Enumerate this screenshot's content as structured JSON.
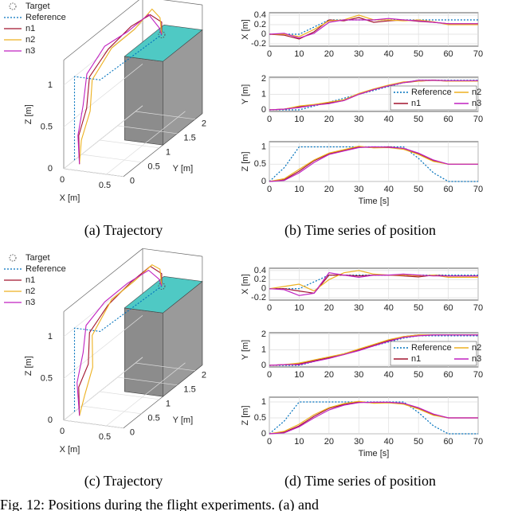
{
  "chart_data": [
    {
      "type": "line3d",
      "xlabel": "X [m]",
      "ylabel": "Y [m]",
      "zlabel": "Z [m]",
      "xlim": [
        0,
        0.7
      ],
      "ylim": [
        0,
        2.2
      ],
      "zlim": [
        0,
        1.3
      ],
      "xticks": [
        0,
        0.5
      ],
      "yticks": [
        0,
        0.5,
        1,
        1.5,
        2
      ],
      "zticks": [
        0,
        0.5,
        1
      ],
      "legend": "upper left",
      "series": [
        {
          "name": "Target",
          "color": "#555555",
          "marker": "circle",
          "x": [
            0.35
          ],
          "y": [
            1.9
          ],
          "z": [
            1
          ]
        },
        {
          "name": "Reference",
          "color": "#0072BD",
          "style": "dotted",
          "x": [
            0,
            0,
            0.3,
            0.35
          ],
          "y": [
            0.3,
            0.3,
            0.3,
            1.9
          ],
          "z": [
            0,
            1,
            1,
            1
          ]
        },
        {
          "name": "n1",
          "color": "#A2142F",
          "x": [
            0.1,
            0.05,
            0.1,
            0.05,
            0.1,
            0.2,
            0.3,
            0.35,
            0.35
          ],
          "y": [
            0.2,
            0.3,
            0.4,
            0.6,
            1.0,
            1.4,
            1.7,
            1.9,
            1.9
          ],
          "z": [
            0,
            0.3,
            0.6,
            0.9,
            1.1,
            1.25,
            1.3,
            1.15,
            1.0
          ]
        },
        {
          "name": "n2",
          "color": "#EDB120",
          "x": [
            0.1,
            0.08,
            0.12,
            0.06,
            0.12,
            0.22,
            0.3,
            0.33,
            0.35
          ],
          "y": [
            0.2,
            0.3,
            0.45,
            0.65,
            1.05,
            1.45,
            1.75,
            1.9,
            1.9
          ],
          "z": [
            0,
            0.25,
            0.55,
            0.85,
            1.1,
            1.2,
            1.35,
            1.2,
            1.0
          ]
        },
        {
          "name": "n3",
          "color": "#C020C0",
          "x": [
            0.1,
            0.04,
            0.08,
            0.04,
            0.08,
            0.18,
            0.28,
            0.34,
            0.35
          ],
          "y": [
            0.2,
            0.3,
            0.35,
            0.55,
            0.95,
            1.35,
            1.7,
            1.85,
            1.9
          ],
          "z": [
            0,
            0.3,
            0.65,
            0.95,
            1.15,
            1.2,
            1.3,
            1.1,
            1.0
          ]
        }
      ]
    },
    {
      "type": "line",
      "ylabel": "X [m]",
      "x": [
        0,
        5,
        10,
        15,
        20,
        25,
        30,
        35,
        40,
        45,
        50,
        55,
        60,
        65,
        70
      ],
      "xlim": [
        0,
        70
      ],
      "xticks": [
        0,
        10,
        20,
        30,
        40,
        50,
        60,
        70
      ],
      "ylim": [
        -0.25,
        0.45
      ],
      "yticks": [
        -0.2,
        0,
        0.2,
        0.4
      ],
      "grid": true,
      "series": [
        {
          "color": "#0072BD",
          "style": "dotted",
          "values": [
            0,
            0,
            0,
            0.15,
            0.3,
            0.3,
            0.3,
            0.3,
            0.3,
            0.3,
            0.3,
            0.3,
            0.3,
            0.3,
            0.3
          ]
        },
        {
          "color": "#A2142F",
          "values": [
            0,
            -0.02,
            -0.1,
            0.05,
            0.3,
            0.28,
            0.35,
            0.25,
            0.28,
            0.3,
            0.27,
            0.25,
            0.22,
            0.22,
            0.22
          ]
        },
        {
          "color": "#EDB120",
          "values": [
            0,
            0,
            -0.05,
            0.1,
            0.28,
            0.3,
            0.4,
            0.3,
            0.3,
            0.28,
            0.3,
            0.26,
            0.2,
            0.2,
            0.2
          ]
        },
        {
          "color": "#C020C0",
          "values": [
            0,
            0.02,
            -0.08,
            0.02,
            0.25,
            0.3,
            0.3,
            0.3,
            0.33,
            0.3,
            0.28,
            0.25,
            0.22,
            0.22,
            0.22
          ]
        }
      ]
    },
    {
      "type": "line",
      "ylabel": "Y [m]",
      "x": [
        0,
        5,
        10,
        15,
        20,
        25,
        30,
        35,
        40,
        45,
        50,
        55,
        60,
        65,
        70
      ],
      "xlim": [
        0,
        70
      ],
      "xticks": [
        0,
        10,
        20,
        30,
        40,
        50,
        60,
        70
      ],
      "ylim": [
        -0.1,
        2.1
      ],
      "yticks": [
        0,
        1,
        2
      ],
      "grid": true,
      "legend": "lower right",
      "series": [
        {
          "name": "Reference",
          "color": "#0072BD",
          "style": "dotted",
          "values": [
            0,
            0,
            0,
            0.25,
            0.5,
            0.75,
            1.0,
            1.25,
            1.5,
            1.75,
            1.9,
            1.9,
            1.9,
            1.9,
            1.9
          ]
        },
        {
          "name": "n1",
          "color": "#A2142F",
          "values": [
            0,
            0.05,
            0.2,
            0.3,
            0.45,
            0.6,
            1.0,
            1.3,
            1.55,
            1.75,
            1.85,
            1.9,
            1.85,
            1.85,
            1.85
          ]
        },
        {
          "name": "n2",
          "color": "#EDB120",
          "values": [
            0,
            0.05,
            0.25,
            0.35,
            0.5,
            0.65,
            1.05,
            1.35,
            1.6,
            1.8,
            1.85,
            1.9,
            1.85,
            1.85,
            1.85
          ]
        },
        {
          "name": "n3",
          "color": "#C020C0",
          "values": [
            0,
            0.05,
            0.15,
            0.3,
            0.4,
            0.6,
            1.0,
            1.3,
            1.55,
            1.75,
            1.9,
            1.9,
            1.88,
            1.88,
            1.88
          ]
        }
      ]
    },
    {
      "type": "line",
      "ylabel": "Z [m]",
      "xlabel": "Time [s]",
      "x": [
        0,
        5,
        10,
        15,
        20,
        25,
        30,
        35,
        40,
        45,
        50,
        55,
        60,
        65,
        70
      ],
      "xlim": [
        0,
        70
      ],
      "xticks": [
        0,
        10,
        20,
        30,
        40,
        50,
        60,
        70
      ],
      "ylim": [
        0,
        1.15
      ],
      "yticks": [
        0,
        0.5,
        1
      ],
      "grid": true,
      "series": [
        {
          "color": "#0072BD",
          "style": "dotted",
          "values": [
            0,
            0.4,
            1,
            1,
            1,
            1,
            1,
            1,
            1,
            1,
            0.67,
            0.25,
            0,
            0,
            0
          ]
        },
        {
          "color": "#A2142F",
          "values": [
            0,
            0.05,
            0.3,
            0.6,
            0.8,
            0.9,
            1.0,
            0.98,
            1.0,
            0.95,
            0.8,
            0.6,
            0.5,
            0.5,
            0.5
          ]
        },
        {
          "color": "#EDB120",
          "values": [
            0,
            0.08,
            0.35,
            0.62,
            0.82,
            0.92,
            1.02,
            0.97,
            0.98,
            0.93,
            0.78,
            0.58,
            0.5,
            0.5,
            0.5
          ]
        },
        {
          "color": "#C020C0",
          "values": [
            0,
            0.03,
            0.25,
            0.55,
            0.78,
            0.88,
            0.98,
            1.0,
            0.99,
            0.96,
            0.82,
            0.62,
            0.5,
            0.5,
            0.5
          ]
        }
      ]
    },
    {
      "type": "line3d",
      "xlabel": "X [m]",
      "ylabel": "Y [m]",
      "zlabel": "Z [m]",
      "xlim": [
        0,
        0.7
      ],
      "ylim": [
        0,
        2.2
      ],
      "zlim": [
        0,
        1.3
      ],
      "xticks": [
        0,
        0.5
      ],
      "yticks": [
        0,
        0.5,
        1,
        1.5,
        2
      ],
      "zticks": [
        0,
        0.5,
        1
      ],
      "legend": "upper left",
      "series": [
        {
          "name": "Target",
          "color": "#555555",
          "marker": "circle",
          "x": [
            0.35
          ],
          "y": [
            1.9
          ],
          "z": [
            1
          ]
        },
        {
          "name": "Reference",
          "color": "#0072BD",
          "style": "dotted",
          "x": [
            0,
            0,
            0.3,
            0.35
          ],
          "y": [
            0.3,
            0.3,
            0.3,
            1.9
          ],
          "z": [
            0,
            1,
            1,
            1
          ]
        },
        {
          "name": "n1",
          "color": "#A2142F",
          "x": [
            0.1,
            0.05,
            0.12,
            0.05,
            0.1,
            0.2,
            0.3,
            0.35,
            0.35
          ],
          "y": [
            0.2,
            0.3,
            0.4,
            0.6,
            1.0,
            1.4,
            1.7,
            1.9,
            1.9
          ],
          "z": [
            0,
            0.3,
            0.55,
            0.85,
            1.05,
            1.2,
            1.3,
            1.15,
            1.0
          ]
        },
        {
          "name": "n2",
          "color": "#EDB120",
          "x": [
            0.1,
            0.1,
            0.15,
            0.06,
            0.12,
            0.22,
            0.3,
            0.33,
            0.35
          ],
          "y": [
            0.2,
            0.35,
            0.45,
            0.65,
            1.05,
            1.45,
            1.75,
            1.9,
            1.9
          ],
          "z": [
            0,
            0.2,
            0.5,
            0.8,
            1.1,
            1.2,
            1.3,
            1.2,
            1.0
          ]
        },
        {
          "name": "n3",
          "color": "#C020C0",
          "x": [
            0.1,
            0.03,
            0.08,
            0.03,
            0.08,
            0.18,
            0.28,
            0.34,
            0.35
          ],
          "y": [
            0.2,
            0.3,
            0.35,
            0.55,
            0.95,
            1.35,
            1.7,
            1.85,
            1.9
          ],
          "z": [
            0,
            0.35,
            0.7,
            0.95,
            1.1,
            1.2,
            1.25,
            1.1,
            1.0
          ]
        }
      ]
    },
    {
      "type": "line",
      "ylabel": "X [m]",
      "x": [
        0,
        5,
        10,
        15,
        20,
        25,
        30,
        35,
        40,
        45,
        50,
        55,
        60,
        65,
        70
      ],
      "xlim": [
        0,
        70
      ],
      "xticks": [
        0,
        10,
        20,
        30,
        40,
        50,
        60,
        70
      ],
      "ylim": [
        -0.25,
        0.45
      ],
      "yticks": [
        -0.2,
        0,
        0.2,
        0.4
      ],
      "grid": true,
      "series": [
        {
          "color": "#0072BD",
          "style": "dotted",
          "values": [
            0,
            0,
            0,
            0.15,
            0.3,
            0.3,
            0.3,
            0.3,
            0.3,
            0.3,
            0.3,
            0.3,
            0.3,
            0.3,
            0.3
          ]
        },
        {
          "color": "#A2142F",
          "values": [
            0,
            0,
            -0.05,
            -0.1,
            0.3,
            0.3,
            0.28,
            0.3,
            0.3,
            0.28,
            0.26,
            0.3,
            0.28,
            0.28,
            0.28
          ]
        },
        {
          "color": "#EDB120",
          "values": [
            0,
            0.05,
            0.1,
            -0.05,
            0.2,
            0.35,
            0.4,
            0.32,
            0.3,
            0.3,
            0.28,
            0.3,
            0.25,
            0.25,
            0.25
          ]
        },
        {
          "color": "#C020C0",
          "values": [
            0,
            -0.02,
            -0.15,
            -0.1,
            0.35,
            0.3,
            0.25,
            0.3,
            0.3,
            0.32,
            0.3,
            0.28,
            0.28,
            0.28,
            0.28
          ]
        }
      ]
    },
    {
      "type": "line",
      "ylabel": "Y [m]",
      "x": [
        0,
        5,
        10,
        15,
        20,
        25,
        30,
        35,
        40,
        45,
        50,
        55,
        60,
        65,
        70
      ],
      "xlim": [
        0,
        70
      ],
      "xticks": [
        0,
        10,
        20,
        30,
        40,
        50,
        60,
        70
      ],
      "ylim": [
        -0.1,
        2.1
      ],
      "yticks": [
        0,
        1,
        2
      ],
      "grid": true,
      "legend": "lower right",
      "series": [
        {
          "name": "Reference",
          "color": "#0072BD",
          "style": "dotted",
          "values": [
            0,
            0,
            0,
            0.25,
            0.5,
            0.75,
            1.0,
            1.25,
            1.5,
            1.75,
            1.9,
            1.9,
            1.9,
            1.9,
            1.9
          ]
        },
        {
          "name": "n1",
          "color": "#A2142F",
          "values": [
            0,
            0.05,
            0.1,
            0.3,
            0.5,
            0.7,
            1.0,
            1.3,
            1.6,
            1.85,
            1.95,
            1.95,
            1.95,
            1.95,
            1.95
          ]
        },
        {
          "name": "n2",
          "color": "#EDB120",
          "values": [
            0,
            0.05,
            0.15,
            0.35,
            0.55,
            0.75,
            1.05,
            1.35,
            1.65,
            1.85,
            1.95,
            1.95,
            1.95,
            1.95,
            1.95
          ]
        },
        {
          "name": "n3",
          "color": "#C020C0",
          "values": [
            0,
            0.05,
            0.05,
            0.25,
            0.45,
            0.7,
            0.95,
            1.25,
            1.55,
            1.8,
            1.9,
            1.95,
            1.95,
            1.95,
            1.95
          ]
        }
      ]
    },
    {
      "type": "line",
      "ylabel": "Z [m]",
      "xlabel": "Time [s]",
      "x": [
        0,
        5,
        10,
        15,
        20,
        25,
        30,
        35,
        40,
        45,
        50,
        55,
        60,
        65,
        70
      ],
      "xlim": [
        0,
        70
      ],
      "xticks": [
        0,
        10,
        20,
        30,
        40,
        50,
        60,
        70
      ],
      "ylim": [
        0,
        1.15
      ],
      "yticks": [
        0,
        0.5,
        1
      ],
      "grid": true,
      "series": [
        {
          "color": "#0072BD",
          "style": "dotted",
          "values": [
            0,
            0.4,
            1,
            1,
            1,
            1,
            1,
            1,
            1,
            1,
            0.67,
            0.25,
            0,
            0,
            0
          ]
        },
        {
          "color": "#A2142F",
          "values": [
            0,
            0.05,
            0.25,
            0.55,
            0.8,
            0.92,
            1.0,
            0.97,
            0.98,
            0.95,
            0.8,
            0.6,
            0.5,
            0.5,
            0.5
          ]
        },
        {
          "color": "#EDB120",
          "values": [
            0,
            0.08,
            0.3,
            0.6,
            0.82,
            0.95,
            1.02,
            0.96,
            0.97,
            0.93,
            0.78,
            0.58,
            0.5,
            0.5,
            0.5
          ]
        },
        {
          "color": "#C020C0",
          "values": [
            0,
            0.03,
            0.22,
            0.5,
            0.75,
            0.9,
            0.98,
            0.99,
            0.99,
            0.96,
            0.82,
            0.62,
            0.5,
            0.5,
            0.5
          ]
        }
      ]
    }
  ],
  "captions": [
    "(a) Trajectory",
    "(b) Time series of position",
    "(c) Trajectory",
    "(d) Time series of position"
  ],
  "figure_caption": "Fig. 12: Positions during the flight experiments. (a) and"
}
